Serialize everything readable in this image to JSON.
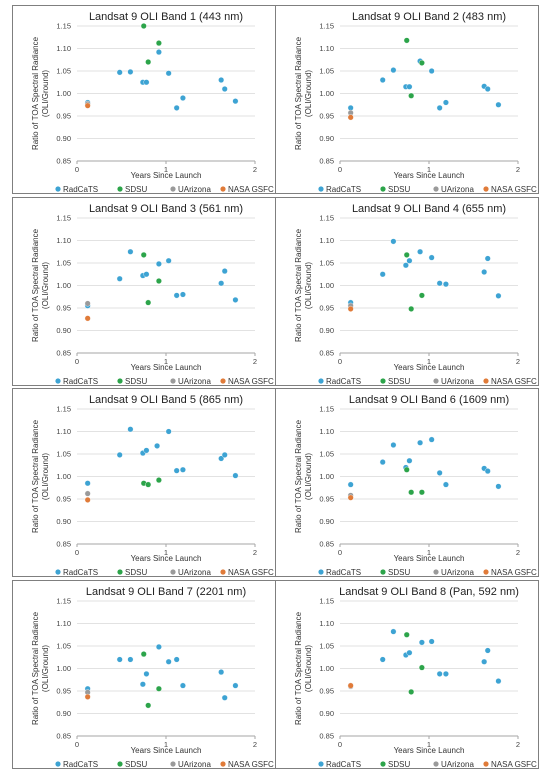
{
  "colors": {
    "RadCaTS": "#3da3d3",
    "SDSU": "#2ca44a",
    "UArizona": "#9a9a9a",
    "NASA GSFC": "#e07b39",
    "gridline": "#d9d9d9",
    "axis": "#a6a6a6"
  },
  "chart_data": [
    {
      "type": "scatter",
      "title": "Landsat 9 OLI Band 1 (443 nm)",
      "xlabel": "Years Since Launch",
      "ylabel": "Ratio of TOA Spectral Radiance (OLI/Ground)",
      "xlim": [
        0,
        2
      ],
      "ylim": [
        0.85,
        1.15
      ],
      "xticks": [
        "0",
        "1",
        "2"
      ],
      "yticks": [
        "0.85",
        "0.90",
        "0.95",
        "1.00",
        "1.05",
        "1.10",
        "1.15"
      ],
      "grid": "horizontal",
      "legend": [
        "RadCaTS",
        "SDSU",
        "UArizona",
        "NASA GSFC"
      ],
      "legend_position": "bottom",
      "series": [
        {
          "name": "RadCaTS",
          "points": [
            [
              0.12,
              0.98
            ],
            [
              0.48,
              1.047
            ],
            [
              0.6,
              1.048
            ],
            [
              0.74,
              1.025
            ],
            [
              0.78,
              1.025
            ],
            [
              0.92,
              1.092
            ],
            [
              1.03,
              1.045
            ],
            [
              1.12,
              0.968
            ],
            [
              1.19,
              0.99
            ],
            [
              1.62,
              1.03
            ],
            [
              1.66,
              1.01
            ],
            [
              1.78,
              0.983
            ]
          ]
        },
        {
          "name": "SDSU",
          "points": [
            [
              0.75,
              1.15
            ],
            [
              0.8,
              1.07
            ],
            [
              0.92,
              1.112
            ]
          ]
        },
        {
          "name": "UArizona",
          "points": [
            [
              0.12,
              0.977
            ]
          ]
        },
        {
          "name": "NASA GSFC",
          "points": [
            [
              0.12,
              0.973
            ]
          ]
        }
      ]
    },
    {
      "type": "scatter",
      "title": "Landsat 9 OLI Band 2 (483 nm)",
      "xlabel": "Years Since Launch",
      "ylabel": "Ratio of TOA Spectral Radiance (OLI/Ground)",
      "xlim": [
        0,
        2
      ],
      "ylim": [
        0.85,
        1.15
      ],
      "xticks": [
        "0",
        "1",
        "2"
      ],
      "yticks": [
        "0.85",
        "0.90",
        "0.95",
        "1.00",
        "1.05",
        "1.10",
        "1.15"
      ],
      "grid": "horizontal",
      "legend": [
        "RadCaTS",
        "SDSU",
        "UArizona",
        "NASA GSFC"
      ],
      "legend_position": "bottom",
      "series": [
        {
          "name": "RadCaTS",
          "points": [
            [
              0.12,
              0.968
            ],
            [
              0.48,
              1.03
            ],
            [
              0.6,
              1.052
            ],
            [
              0.74,
              1.015
            ],
            [
              0.78,
              1.015
            ],
            [
              0.9,
              1.072
            ],
            [
              1.03,
              1.05
            ],
            [
              1.12,
              0.968
            ],
            [
              1.19,
              0.98
            ],
            [
              1.62,
              1.016
            ],
            [
              1.66,
              1.01
            ],
            [
              1.78,
              0.975
            ]
          ]
        },
        {
          "name": "SDSU",
          "points": [
            [
              0.75,
              1.118
            ],
            [
              0.8,
              0.995
            ],
            [
              0.92,
              1.068
            ]
          ]
        },
        {
          "name": "UArizona",
          "points": [
            [
              0.12,
              0.957
            ]
          ]
        },
        {
          "name": "NASA GSFC",
          "points": [
            [
              0.12,
              0.947
            ]
          ]
        }
      ]
    },
    {
      "type": "scatter",
      "title": "Landsat 9 OLI Band 3 (561 nm)",
      "xlabel": "Years Since Launch",
      "ylabel": "Ratio of TOA Spectral Radiance (OLI/Ground)",
      "xlim": [
        0,
        2
      ],
      "ylim": [
        0.85,
        1.15
      ],
      "xticks": [
        "0",
        "1",
        "2"
      ],
      "yticks": [
        "0.85",
        "0.90",
        "0.95",
        "1.00",
        "1.05",
        "1.10",
        "1.15"
      ],
      "grid": "horizontal",
      "legend": [
        "RadCaTS",
        "SDSU",
        "UArizona",
        "NASA GSFC"
      ],
      "legend_position": "bottom",
      "series": [
        {
          "name": "RadCaTS",
          "points": [
            [
              0.12,
              0.955
            ],
            [
              0.48,
              1.015
            ],
            [
              0.6,
              1.075
            ],
            [
              0.74,
              1.022
            ],
            [
              0.78,
              1.025
            ],
            [
              0.92,
              1.048
            ],
            [
              1.03,
              1.055
            ],
            [
              1.12,
              0.978
            ],
            [
              1.19,
              0.98
            ],
            [
              1.62,
              1.005
            ],
            [
              1.66,
              1.032
            ],
            [
              1.78,
              0.968
            ]
          ]
        },
        {
          "name": "SDSU",
          "points": [
            [
              0.75,
              1.068
            ],
            [
              0.8,
              0.962
            ],
            [
              0.92,
              1.01
            ]
          ]
        },
        {
          "name": "UArizona",
          "points": [
            [
              0.12,
              0.96
            ]
          ]
        },
        {
          "name": "NASA GSFC",
          "points": [
            [
              0.12,
              0.927
            ]
          ]
        }
      ]
    },
    {
      "type": "scatter",
      "title": "Landsat 9 OLI Band 4 (655 nm)",
      "xlabel": "Years Since Launch",
      "ylabel": "Ratio of TOA Spectral Radiance (OLI/Ground)",
      "xlim": [
        0,
        2
      ],
      "ylim": [
        0.85,
        1.15
      ],
      "xticks": [
        "0",
        "1",
        "2"
      ],
      "yticks": [
        "0.85",
        "0.90",
        "0.95",
        "1.00",
        "1.05",
        "1.10",
        "1.15"
      ],
      "grid": "horizontal",
      "legend": [
        "RadCaTS",
        "SDSU",
        "UArizona",
        "NASA GSFC"
      ],
      "legend_position": "bottom",
      "series": [
        {
          "name": "RadCaTS",
          "points": [
            [
              0.12,
              0.962
            ],
            [
              0.48,
              1.025
            ],
            [
              0.6,
              1.098
            ],
            [
              0.74,
              1.045
            ],
            [
              0.78,
              1.055
            ],
            [
              0.9,
              1.075
            ],
            [
              1.03,
              1.062
            ],
            [
              1.12,
              1.005
            ],
            [
              1.19,
              1.003
            ],
            [
              1.62,
              1.03
            ],
            [
              1.66,
              1.06
            ],
            [
              1.78,
              0.977
            ]
          ]
        },
        {
          "name": "SDSU",
          "points": [
            [
              0.75,
              1.068
            ],
            [
              0.8,
              0.948
            ],
            [
              0.92,
              0.978
            ]
          ]
        },
        {
          "name": "UArizona",
          "points": [
            [
              0.12,
              0.955
            ]
          ]
        },
        {
          "name": "NASA GSFC",
          "points": [
            [
              0.12,
              0.948
            ]
          ]
        }
      ]
    },
    {
      "type": "scatter",
      "title": "Landsat 9 OLI Band 5 (865 nm)",
      "xlabel": "Years Since Launch",
      "ylabel": "Ratio of TOA Spectral Radiance (OLI/Ground)",
      "xlim": [
        0,
        2
      ],
      "ylim": [
        0.85,
        1.15
      ],
      "xticks": [
        "0",
        "1",
        "2"
      ],
      "yticks": [
        "0.85",
        "0.90",
        "0.95",
        "1.00",
        "1.05",
        "1.10",
        "1.15"
      ],
      "grid": "horizontal",
      "legend": [
        "RadCaTS",
        "SDSU",
        "UArizona",
        "NASA GSFC"
      ],
      "legend_position": "bottom",
      "series": [
        {
          "name": "RadCaTS",
          "points": [
            [
              0.12,
              0.985
            ],
            [
              0.48,
              1.048
            ],
            [
              0.6,
              1.105
            ],
            [
              0.74,
              1.052
            ],
            [
              0.78,
              1.058
            ],
            [
              0.9,
              1.068
            ],
            [
              1.03,
              1.1
            ],
            [
              1.12,
              1.013
            ],
            [
              1.19,
              1.015
            ],
            [
              1.62,
              1.04
            ],
            [
              1.66,
              1.048
            ],
            [
              1.78,
              1.002
            ]
          ]
        },
        {
          "name": "SDSU",
          "points": [
            [
              0.75,
              0.985
            ],
            [
              0.8,
              0.982
            ],
            [
              0.92,
              0.992
            ]
          ]
        },
        {
          "name": "UArizona",
          "points": [
            [
              0.12,
              0.962
            ]
          ]
        },
        {
          "name": "NASA GSFC",
          "points": [
            [
              0.12,
              0.948
            ]
          ]
        }
      ]
    },
    {
      "type": "scatter",
      "title": "Landsat 9 OLI Band 6 (1609 nm)",
      "xlabel": "Years Since Launch",
      "ylabel": "Ratio of TOA Spectral Radiance (OLI/Ground)",
      "xlim": [
        0,
        2
      ],
      "ylim": [
        0.85,
        1.15
      ],
      "xticks": [
        "0",
        "1",
        "2"
      ],
      "yticks": [
        "0.85",
        "0.90",
        "0.95",
        "1.00",
        "1.05",
        "1.10",
        "1.15"
      ],
      "grid": "horizontal",
      "legend": [
        "RadCaTS",
        "SDSU",
        "UArizona",
        "NASA GSFC"
      ],
      "legend_position": "bottom",
      "series": [
        {
          "name": "RadCaTS",
          "points": [
            [
              0.12,
              0.982
            ],
            [
              0.48,
              1.032
            ],
            [
              0.6,
              1.07
            ],
            [
              0.74,
              1.02
            ],
            [
              0.78,
              1.035
            ],
            [
              0.9,
              1.075
            ],
            [
              1.03,
              1.082
            ],
            [
              1.12,
              1.008
            ],
            [
              1.19,
              0.982
            ],
            [
              1.62,
              1.018
            ],
            [
              1.66,
              1.012
            ],
            [
              1.78,
              0.978
            ]
          ]
        },
        {
          "name": "SDSU",
          "points": [
            [
              0.75,
              1.015
            ],
            [
              0.8,
              0.965
            ],
            [
              0.92,
              0.965
            ]
          ]
        },
        {
          "name": "UArizona",
          "points": [
            [
              0.12,
              0.958
            ]
          ]
        },
        {
          "name": "NASA GSFC",
          "points": [
            [
              0.12,
              0.953
            ]
          ]
        }
      ]
    },
    {
      "type": "scatter",
      "title": "Landsat 9 OLI Band 7 (2201 nm)",
      "xlabel": "Years Since Launch",
      "ylabel": "Ratio of TOA Spectral Radiance (OLI/Ground)",
      "xlim": [
        0,
        2
      ],
      "ylim": [
        0.85,
        1.15
      ],
      "xticks": [
        "0",
        "1",
        "2"
      ],
      "yticks": [
        "0.85",
        "0.90",
        "0.95",
        "1.00",
        "1.05",
        "1.10",
        "1.15"
      ],
      "grid": "horizontal",
      "legend": [
        "RadCaTS",
        "SDSU",
        "UArizona",
        "NASA GSFC"
      ],
      "legend_position": "bottom",
      "series": [
        {
          "name": "RadCaTS",
          "points": [
            [
              0.12,
              0.955
            ],
            [
              0.48,
              1.02
            ],
            [
              0.6,
              1.02
            ],
            [
              0.74,
              0.965
            ],
            [
              0.78,
              0.988
            ],
            [
              0.92,
              1.048
            ],
            [
              1.03,
              1.015
            ],
            [
              1.12,
              1.02
            ],
            [
              1.19,
              0.962
            ],
            [
              1.62,
              0.992
            ],
            [
              1.66,
              0.935
            ],
            [
              1.78,
              0.962
            ]
          ]
        },
        {
          "name": "SDSU",
          "points": [
            [
              0.75,
              1.032
            ],
            [
              0.8,
              0.918
            ],
            [
              0.92,
              0.955
            ]
          ]
        },
        {
          "name": "UArizona",
          "points": [
            [
              0.12,
              0.947
            ]
          ]
        },
        {
          "name": "NASA GSFC",
          "points": [
            [
              0.12,
              0.937
            ]
          ]
        }
      ]
    },
    {
      "type": "scatter",
      "title": "Landsat 9 OLI Band 8 (Pan, 592 nm)",
      "xlabel": "Years Since Launch",
      "ylabel": "Ratio of TOA Spectral Radiance (OLI/Ground)",
      "xlim": [
        0,
        2
      ],
      "ylim": [
        0.85,
        1.15
      ],
      "xticks": [
        "0",
        "1",
        "2"
      ],
      "yticks": [
        "0.85",
        "0.90",
        "0.95",
        "1.00",
        "1.05",
        "1.10",
        "1.15"
      ],
      "grid": "horizontal",
      "legend": [
        "RadCaTS",
        "SDSU",
        "UArizona",
        "NASA GSFC"
      ],
      "legend_position": "bottom",
      "series": [
        {
          "name": "RadCaTS",
          "points": [
            [
              0.12,
              0.962
            ],
            [
              0.48,
              1.02
            ],
            [
              0.6,
              1.082
            ],
            [
              0.74,
              1.03
            ],
            [
              0.78,
              1.035
            ],
            [
              0.92,
              1.058
            ],
            [
              1.03,
              1.06
            ],
            [
              1.12,
              0.988
            ],
            [
              1.19,
              0.988
            ],
            [
              1.62,
              1.015
            ],
            [
              1.66,
              1.04
            ],
            [
              1.78,
              0.972
            ]
          ]
        },
        {
          "name": "SDSU",
          "points": [
            [
              0.75,
              1.075
            ],
            [
              0.8,
              0.948
            ],
            [
              0.92,
              1.002
            ]
          ]
        },
        {
          "name": "UArizona",
          "points": [
            [
              0.12,
              0.96
            ]
          ]
        },
        {
          "name": "NASA GSFC",
          "points": [
            [
              0.12,
              0.962
            ]
          ]
        }
      ]
    }
  ]
}
